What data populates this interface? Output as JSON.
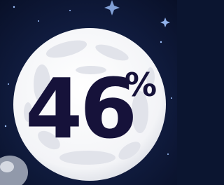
{
  "display": {
    "number": "46",
    "sign": "%"
  }
}
